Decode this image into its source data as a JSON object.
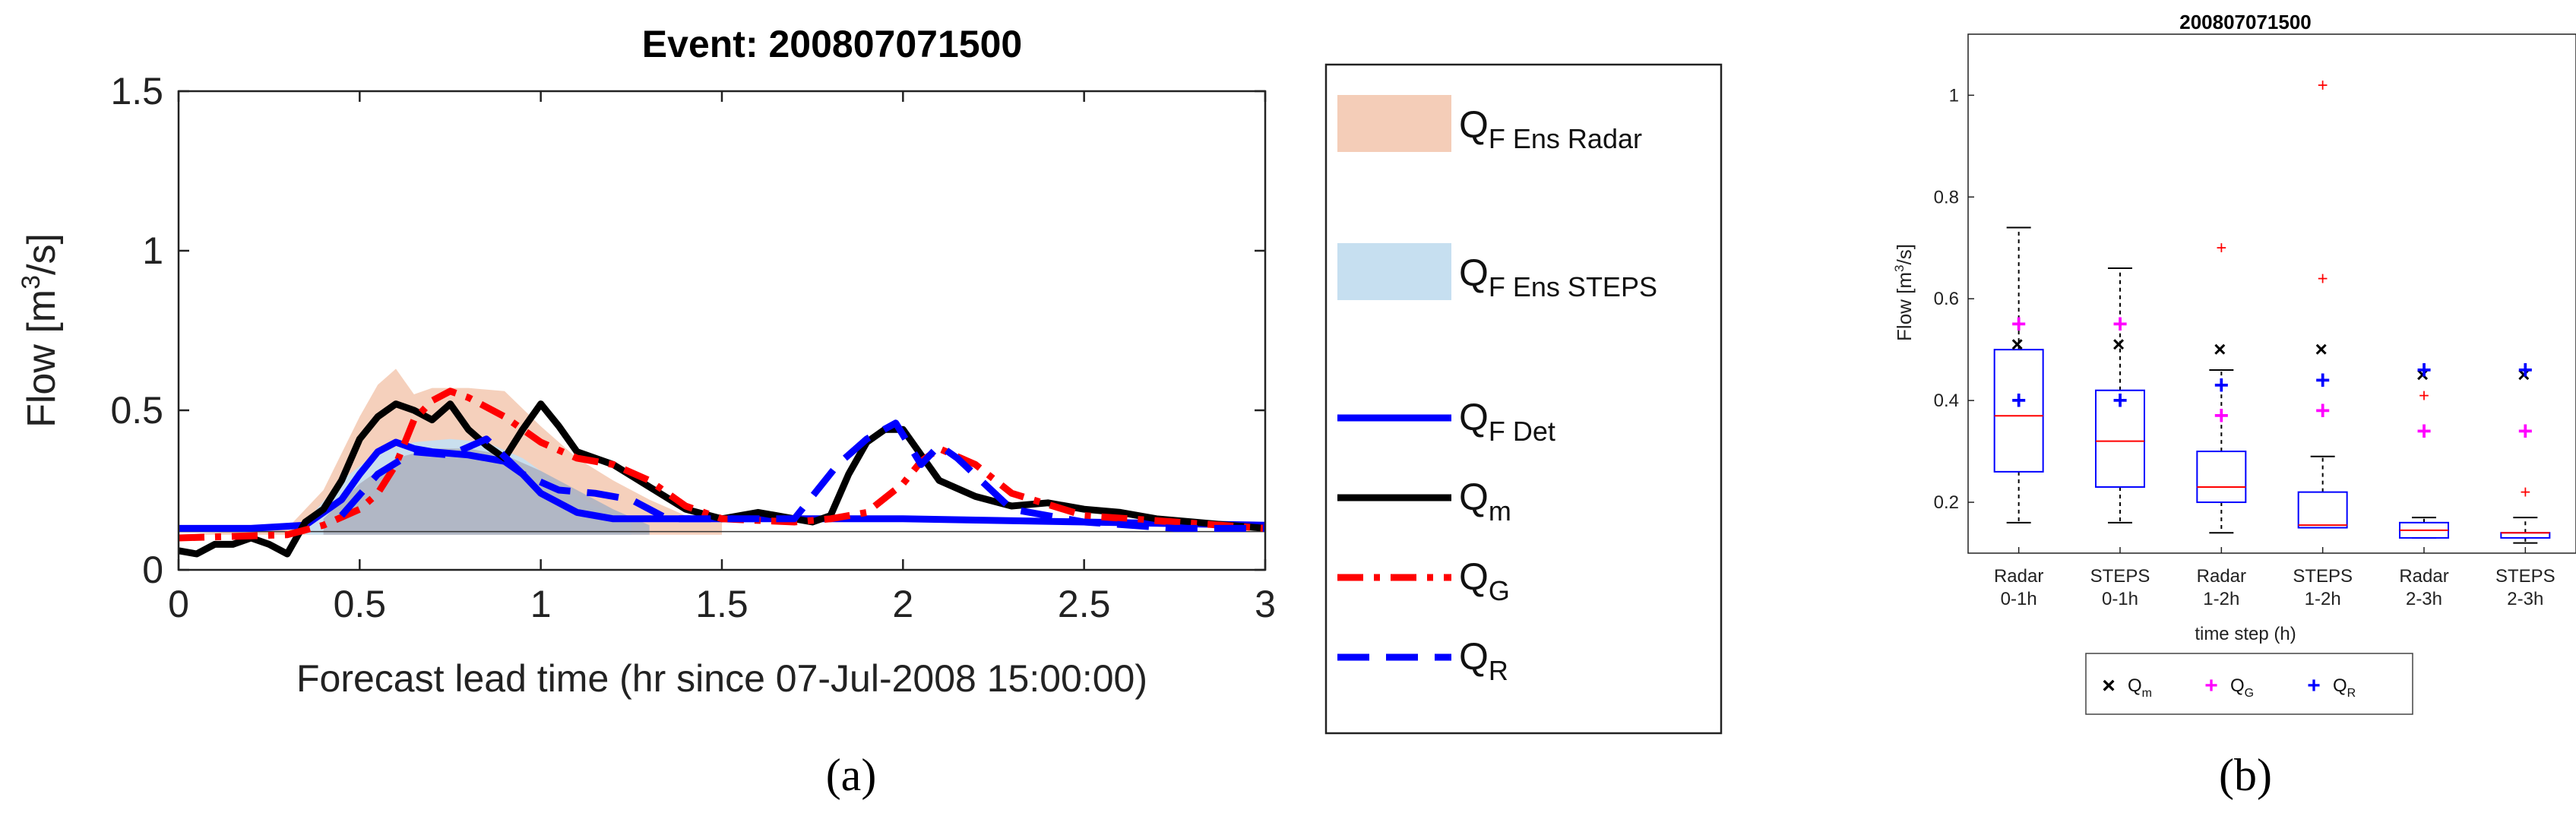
{
  "panel_a_label": "(a)",
  "panel_b_label": "(b)",
  "chart_data": [
    {
      "type": "line",
      "title": "Event: 200807071500",
      "xlabel": "Forecast lead time (hr since 07-Jul-2008 15:00:00)",
      "ylabel_main": "Flow [m",
      "ylabel_sup": "3",
      "ylabel_tail": "/s]",
      "xlim": [
        0,
        3
      ],
      "ylim": [
        0,
        1.5
      ],
      "xticks": [
        0,
        0.5,
        1,
        1.5,
        2,
        2.5,
        3
      ],
      "xtick_labels": [
        "0",
        "0.5",
        "1",
        "1.5",
        "2",
        "2.5",
        "3"
      ],
      "yticks": [
        0,
        0.5,
        1,
        1.5
      ],
      "ytick_labels": [
        "0",
        "0.5",
        "1",
        "1.5"
      ],
      "legend": [
        {
          "main": "Q",
          "sub": "F Ens Radar",
          "style": "patch",
          "color": "#f4cdb8"
        },
        {
          "main": "Q",
          "sub": "F Ens STEPS",
          "style": "patch",
          "color": "#c6dff0"
        },
        {
          "main": "Q",
          "sub": "F Det",
          "style": "solid",
          "color": "#0000ff"
        },
        {
          "main": "Q",
          "sub": "m",
          "style": "solid",
          "color": "#000000"
        },
        {
          "main": "Q",
          "sub": "G",
          "style": "dashdot",
          "color": "#ff0000"
        },
        {
          "main": "Q",
          "sub": "R",
          "style": "dashed",
          "color": "#0000ff"
        }
      ],
      "series": [
        {
          "style": "band",
          "color": "#f4cdb8",
          "x": [
            0,
            0.3,
            0.4,
            0.5,
            0.55,
            0.6,
            0.65,
            0.7,
            0.8,
            0.9,
            1.0,
            1.1,
            1.2,
            1.3,
            1.4,
            1.5
          ],
          "upper": [
            0.11,
            0.13,
            0.25,
            0.48,
            0.58,
            0.63,
            0.55,
            0.57,
            0.57,
            0.56,
            0.45,
            0.35,
            0.28,
            0.22,
            0.17,
            0.15
          ],
          "lower": [
            0.11,
            0.11,
            0.11,
            0.11,
            0.11,
            0.11,
            0.11,
            0.11,
            0.11,
            0.11,
            0.11,
            0.11,
            0.11,
            0.11,
            0.11,
            0.11
          ]
        },
        {
          "style": "band",
          "color": "#c6dff0",
          "x": [
            0.35,
            0.45,
            0.55,
            0.65,
            0.75,
            0.85,
            0.95,
            1.05,
            1.15,
            1.25
          ],
          "upper": [
            0.15,
            0.28,
            0.37,
            0.4,
            0.41,
            0.4,
            0.35,
            0.27,
            0.2,
            0.15
          ],
          "lower": [
            0.11,
            0.11,
            0.11,
            0.11,
            0.11,
            0.11,
            0.11,
            0.11,
            0.11,
            0.11
          ]
        },
        {
          "style": "band",
          "color": "#b0b4c2",
          "x": [
            0.4,
            0.5,
            0.6,
            0.7,
            0.8,
            0.9,
            1.0,
            1.1,
            1.2,
            1.3
          ],
          "upper": [
            0.16,
            0.27,
            0.35,
            0.38,
            0.38,
            0.36,
            0.31,
            0.25,
            0.19,
            0.14
          ],
          "lower": [
            0.11,
            0.11,
            0.11,
            0.11,
            0.11,
            0.11,
            0.11,
            0.11,
            0.11,
            0.11
          ]
        },
        {
          "style": "solid",
          "color": "#0000ff",
          "x": [
            0,
            0.2,
            0.35,
            0.45,
            0.5,
            0.55,
            0.6,
            0.65,
            0.7,
            0.8,
            0.9,
            0.95,
            1.0,
            1.1,
            1.2,
            1.5,
            2.0,
            2.5,
            3.0
          ],
          "y": [
            0.13,
            0.13,
            0.14,
            0.22,
            0.3,
            0.37,
            0.4,
            0.38,
            0.37,
            0.36,
            0.34,
            0.3,
            0.24,
            0.18,
            0.16,
            0.16,
            0.16,
            0.15,
            0.14
          ]
        },
        {
          "style": "solid",
          "color": "#000000",
          "x": [
            0,
            0.05,
            0.1,
            0.15,
            0.2,
            0.25,
            0.3,
            0.35,
            0.4,
            0.45,
            0.5,
            0.55,
            0.6,
            0.65,
            0.7,
            0.75,
            0.8,
            0.85,
            0.9,
            0.95,
            1.0,
            1.05,
            1.1,
            1.15,
            1.2,
            1.3,
            1.4,
            1.5,
            1.6,
            1.7,
            1.75,
            1.8,
            1.85,
            1.9,
            1.95,
            2.0,
            2.05,
            2.1,
            2.2,
            2.3,
            2.4,
            2.5,
            2.6,
            2.7,
            2.8,
            2.9,
            3.0
          ],
          "y": [
            0.06,
            0.05,
            0.08,
            0.08,
            0.1,
            0.08,
            0.05,
            0.15,
            0.19,
            0.28,
            0.41,
            0.48,
            0.52,
            0.5,
            0.47,
            0.52,
            0.44,
            0.39,
            0.35,
            0.44,
            0.52,
            0.45,
            0.37,
            0.35,
            0.33,
            0.26,
            0.19,
            0.16,
            0.18,
            0.16,
            0.15,
            0.17,
            0.3,
            0.4,
            0.44,
            0.44,
            0.36,
            0.28,
            0.23,
            0.2,
            0.21,
            0.19,
            0.18,
            0.16,
            0.15,
            0.14,
            0.13
          ]
        },
        {
          "style": "dashdot",
          "color": "#ff0000",
          "x": [
            0,
            0.3,
            0.4,
            0.5,
            0.55,
            0.6,
            0.65,
            0.7,
            0.75,
            0.8,
            0.9,
            1.0,
            1.1,
            1.2,
            1.3,
            1.4,
            1.5,
            1.7,
            1.8,
            1.9,
            2.0,
            2.05,
            2.1,
            2.2,
            2.3,
            2.5,
            3.0
          ],
          "y": [
            0.1,
            0.11,
            0.14,
            0.19,
            0.24,
            0.33,
            0.47,
            0.53,
            0.56,
            0.54,
            0.48,
            0.4,
            0.35,
            0.33,
            0.28,
            0.2,
            0.16,
            0.15,
            0.16,
            0.18,
            0.27,
            0.34,
            0.38,
            0.33,
            0.24,
            0.17,
            0.13
          ]
        },
        {
          "style": "dashed",
          "color": "#0000ff",
          "x": [
            0.45,
            0.55,
            0.65,
            0.75,
            0.85,
            0.95,
            1.05,
            1.15,
            1.25,
            1.35,
            1.5,
            1.7,
            1.82,
            1.9,
            1.98,
            2.05,
            2.1,
            2.15,
            2.3,
            2.5,
            2.75,
            3.0
          ],
          "y": [
            0.17,
            0.3,
            0.37,
            0.36,
            0.41,
            0.3,
            0.25,
            0.24,
            0.22,
            0.16,
            0.16,
            0.16,
            0.33,
            0.41,
            0.46,
            0.33,
            0.39,
            0.35,
            0.19,
            0.15,
            0.13,
            0.13
          ]
        }
      ],
      "reference_line_y": 0.12
    },
    {
      "type": "box",
      "title": "200807071500",
      "xlabel": "time step (h)",
      "ylabel_main": "Flow [m",
      "ylabel_sup": "3",
      "ylabel_tail": "/s]",
      "ylim": [
        0.1,
        1.12
      ],
      "yticks": [
        0.2,
        0.4,
        0.6,
        0.8,
        1.0
      ],
      "ytick_labels": [
        "0.2",
        "0.4",
        "0.6",
        "0.8",
        "1"
      ],
      "categories": [
        {
          "l1": "Radar",
          "l2": "0-1h"
        },
        {
          "l1": "STEPS",
          "l2": "0-1h"
        },
        {
          "l1": "Radar",
          "l2": "1-2h"
        },
        {
          "l1": "STEPS",
          "l2": "1-2h"
        },
        {
          "l1": "Radar",
          "l2": "2-3h"
        },
        {
          "l1": "STEPS",
          "l2": "2-3h"
        }
      ],
      "legend": [
        {
          "marker": "×",
          "color": "#000000",
          "main": "Q",
          "sub": "m"
        },
        {
          "marker": "+",
          "color": "#ff00ff",
          "main": "Q",
          "sub": "G"
        },
        {
          "marker": "+",
          "color": "#0000ff",
          "main": "Q",
          "sub": "R"
        }
      ],
      "boxes": [
        {
          "q1": 0.26,
          "median": 0.37,
          "q3": 0.5,
          "wlo": 0.16,
          "whi": 0.74,
          "outliers": [],
          "Qm": 0.51,
          "QG": 0.55,
          "QR": 0.4
        },
        {
          "q1": 0.23,
          "median": 0.32,
          "q3": 0.42,
          "wlo": 0.16,
          "whi": 0.66,
          "outliers": [],
          "Qm": 0.51,
          "QG": 0.55,
          "QR": 0.4
        },
        {
          "q1": 0.2,
          "median": 0.23,
          "q3": 0.3,
          "wlo": 0.14,
          "whi": 0.46,
          "outliers": [
            0.7
          ],
          "Qm": 0.5,
          "QG": 0.37,
          "QR": 0.43
        },
        {
          "q1": 0.15,
          "median": 0.155,
          "q3": 0.22,
          "wlo": 0.15,
          "whi": 0.29,
          "outliers": [
            0.64,
            1.02
          ],
          "Qm": 0.5,
          "QG": 0.38,
          "QR": 0.44
        },
        {
          "q1": 0.13,
          "median": 0.145,
          "q3": 0.16,
          "wlo": 0.13,
          "whi": 0.17,
          "outliers": [
            0.41
          ],
          "Qm": 0.45,
          "QG": 0.34,
          "QR": 0.46
        },
        {
          "q1": 0.13,
          "median": 0.14,
          "q3": 0.14,
          "wlo": 0.12,
          "whi": 0.17,
          "outliers": [
            0.22
          ],
          "Qm": 0.45,
          "QG": 0.34,
          "QR": 0.46
        }
      ]
    }
  ]
}
